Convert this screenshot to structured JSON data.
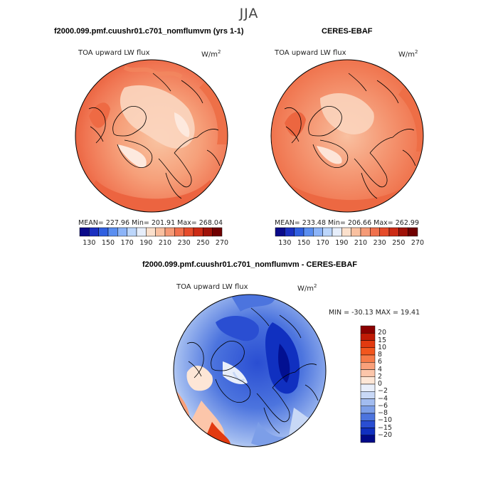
{
  "season": "JJA",
  "panels": [
    {
      "title": "f2000.099.pmf.cuushr01.c701_nomflumvm (yrs 1-1)",
      "variable": "TOA upward LW flux",
      "units": "W/m",
      "units_exp": "2",
      "stats_text": "MEAN= 227.96   Min= 201.91   Max= 268.04"
    },
    {
      "title": "CERES-EBAF",
      "variable": "TOA upward LW flux",
      "units": "W/m",
      "units_exp": "2",
      "stats_text": "MEAN= 233.48   Min= 206.66   Max= 262.99"
    }
  ],
  "abs_colorbar": {
    "levels": [
      "130",
      "150",
      "170",
      "190",
      "210",
      "230",
      "250",
      "270"
    ],
    "colors": [
      "#0a0a8a",
      "#1a2fc0",
      "#2f5fe0",
      "#5a8ef0",
      "#8cb4f8",
      "#bcd6fb",
      "#e6eefb",
      "#fbe0cc",
      "#f9c0a0",
      "#f59a76",
      "#f0704c",
      "#e64b2a",
      "#cc2a14",
      "#a01208",
      "#700000"
    ]
  },
  "diff_panel": {
    "title": "f2000.099.pmf.cuushr01.c701_nomflumvm - CERES-EBAF",
    "variable": "TOA upward LW flux",
    "units": "W/m",
    "units_exp": "2",
    "minmax_text": "MIN = -30.13  MAX =  19.41"
  },
  "diff_colorbar": {
    "levels": [
      "20",
      "15",
      "10",
      "8",
      "6",
      "4",
      "2",
      "0",
      "−2",
      "−4",
      "−6",
      "−8",
      "−10",
      "−15",
      "−20"
    ],
    "colors": [
      "#8b0000",
      "#c01a05",
      "#e23a10",
      "#f2561e",
      "#f67a48",
      "#f9a07a",
      "#fcc6aa",
      "#fde6d6",
      "#e8eefa",
      "#c8d8f6",
      "#a2bcf0",
      "#7c9ee8",
      "#4c74de",
      "#2a4ed2",
      "#1030c0",
      "#000a88"
    ]
  }
}
